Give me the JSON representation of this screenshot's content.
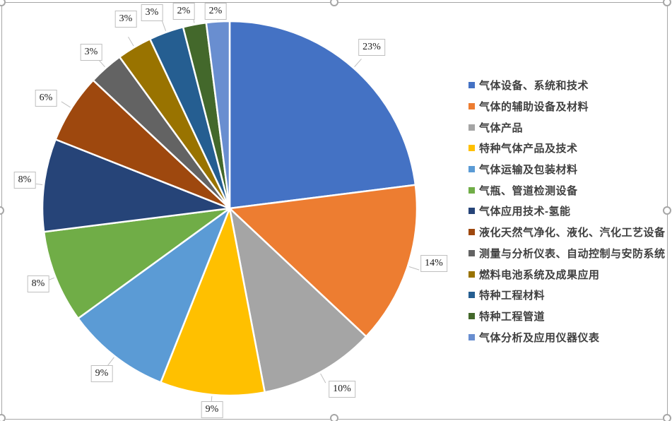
{
  "chart_data": {
    "type": "pie",
    "title": "",
    "legend_position": "right",
    "direction": "clockwise",
    "start_angle_deg": 0,
    "categories": [
      "气体设备、系统和技术",
      "气体的辅助设备及材料",
      "气体产品",
      "特种气体产品及技术",
      "气体运输及包装材料",
      "气瓶、管道检测设备",
      "气体应用技术-氢能",
      "液化天然气净化、液化、汽化工艺设备",
      "测量与分析仪表、自动控制与安防系统",
      "燃料电池系统及成果应用",
      "特种工程材料",
      "特种工程管道",
      "气体分析及应用仪器仪表"
    ],
    "values": [
      23,
      14,
      10,
      9,
      9,
      8,
      8,
      6,
      3,
      3,
      3,
      2,
      2
    ],
    "data_labels": [
      "23%",
      "14%",
      "10%",
      "9%",
      "9%",
      "8%",
      "8%",
      "6%",
      "3%",
      "3%",
      "3%",
      "2%",
      "2%"
    ],
    "colors": [
      "#4472C4",
      "#ED7D31",
      "#A5A5A5",
      "#FFC000",
      "#5B9BD5",
      "#70AD47",
      "#264478",
      "#9E480E",
      "#636363",
      "#997300",
      "#255E91",
      "#43682B",
      "#698ED0"
    ],
    "slice_border_color": "#FFFFFF",
    "data_label_style": "percent-callout"
  },
  "canvas": {
    "background_color": "#FFFFFF",
    "selection_border_color": "#A6A6A6",
    "leader_line_color": "#BFBFBF",
    "legend_text_color": "#404040"
  }
}
